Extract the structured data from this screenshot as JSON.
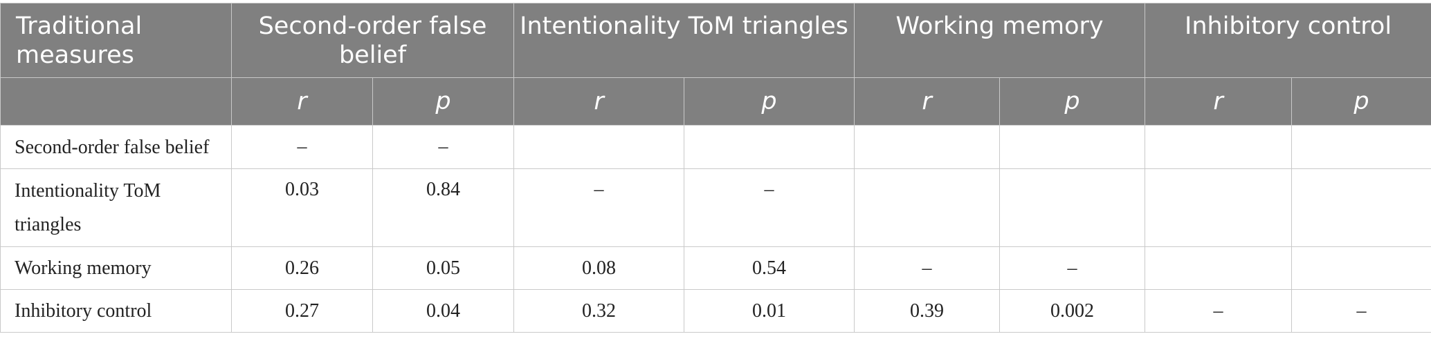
{
  "header": {
    "corner_label": "Traditional measures",
    "groups": [
      "Second-order false belief",
      "Intentionality ToM triangles",
      "Working memory",
      "Inhibitory control"
    ],
    "sub_r": "r",
    "sub_p": "p"
  },
  "rows": [
    {
      "label": "Second-order false belief",
      "cells": [
        "–",
        "–",
        "",
        "",
        "",
        "",
        "",
        ""
      ]
    },
    {
      "label": "Intentionality ToM triangles",
      "cells": [
        "0.03",
        "0.84",
        "–",
        "–",
        "",
        "",
        "",
        ""
      ]
    },
    {
      "label": "Working memory",
      "cells": [
        "0.26",
        "0.05",
        "0.08",
        "0.54",
        "–",
        "–",
        "",
        ""
      ]
    },
    {
      "label": "Inhibitory control",
      "cells": [
        "0.27",
        "0.04",
        "0.32",
        "0.01",
        "0.39",
        "0.002",
        "–",
        "–"
      ]
    }
  ]
}
